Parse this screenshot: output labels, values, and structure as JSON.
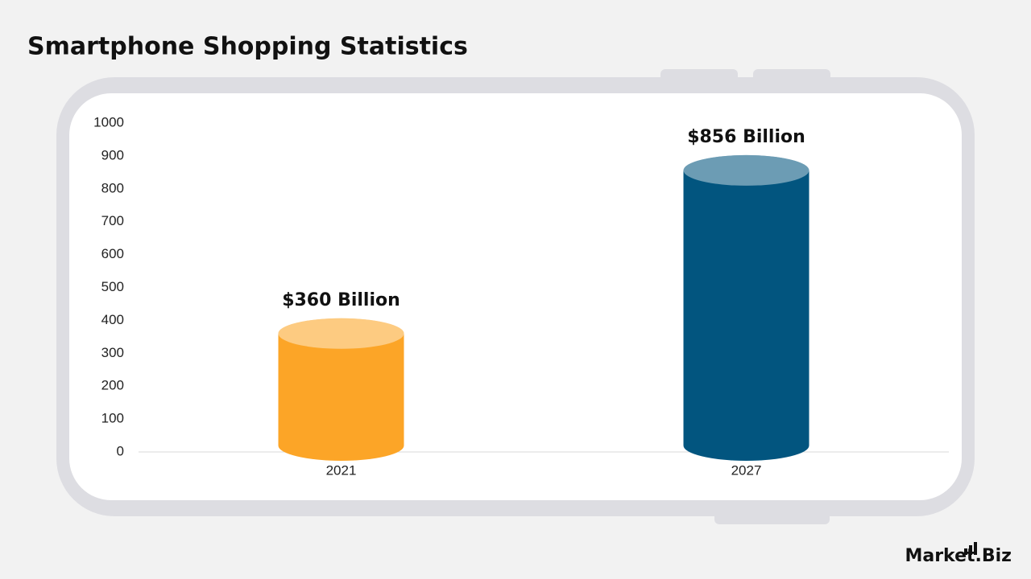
{
  "chart_data": {
    "type": "cylinder",
    "title": "Smartphone Shopping Statistics",
    "categories": [
      "2021",
      "2027"
    ],
    "values": [
      360,
      856
    ],
    "value_labels": [
      "$360 Billion",
      "$856 Billion"
    ],
    "colors": [
      "#fca527",
      "#02557f"
    ],
    "ylim": [
      0,
      1000
    ],
    "yticks": [
      0,
      100,
      200,
      300,
      400,
      500,
      600,
      700,
      800,
      900,
      1000
    ],
    "grid": false
  },
  "brand": "Market.Biz"
}
